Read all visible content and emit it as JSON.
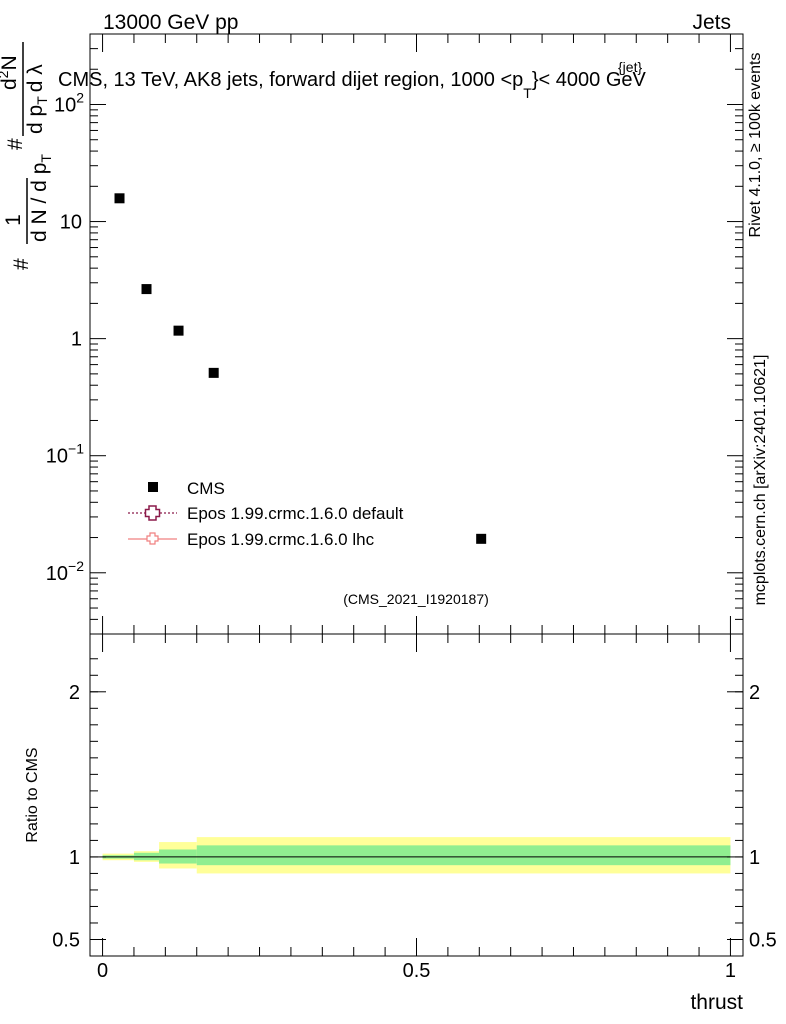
{
  "header": {
    "left": "13000 GeV pp",
    "right": "Jets"
  },
  "side_text": {
    "rivet": "Rivet 4.1.0, ≥ 100k events",
    "mcplots": "mcplots.cern.ch [arXiv:2401.10621]"
  },
  "chart_data": [
    {
      "type": "scatter",
      "title": "CMS, 13 TeV, AK8 jets, forward dijet region, 1000 <p",
      "title_sup": "{jet}",
      "title_sub": "T",
      "title_end": "}< 4000 GeV",
      "ylabel_parts": {
        "prefix": "#",
        "num": "1",
        "den": "d N / d p",
        "den_sub": "T",
        "hash": "#",
        "num2": "d",
        "num2_sup": "2",
        "num2_end": "N",
        "den2": "d p",
        "den2_sub": "T",
        "den2_end": "d λ"
      },
      "yscale": "log",
      "ylim": [
        0.003,
        400
      ],
      "xlim": [
        -0.02,
        1.02
      ],
      "y_ticks": [
        {
          "value": 0.01,
          "base": "10",
          "exp": "−2"
        },
        {
          "value": 0.1,
          "base": "10",
          "exp": "−1"
        },
        {
          "value": 1,
          "base": "1",
          "exp": ""
        },
        {
          "value": 10,
          "base": "10",
          "exp": ""
        },
        {
          "value": 100,
          "base": "10",
          "exp": "2"
        }
      ],
      "series": [
        {
          "name": "CMS",
          "marker": "square",
          "color": "#000000",
          "x": [
            0.027,
            0.07,
            0.121,
            0.177,
            0.603
          ],
          "y": [
            15.8,
            2.65,
            1.17,
            0.51,
            0.0195
          ]
        },
        {
          "name": "Epos 1.99.crmc.1.6.0 default",
          "marker": "open-cross",
          "line": "dotted",
          "color": "#8b1a4a",
          "x": [],
          "y": []
        },
        {
          "name": "Epos 1.99.crmc.1.6.0 lhc",
          "marker": "open-cross",
          "line": "solid",
          "color": "#f08080",
          "x": [],
          "y": []
        }
      ],
      "legend": "lower-left",
      "watermark": "(CMS_2021_I1920187)"
    },
    {
      "type": "area",
      "ylabel": "Ratio to CMS",
      "xlabel": "thrust",
      "ylim": [
        0.4,
        2.35
      ],
      "xlim": [
        -0.02,
        1.02
      ],
      "y_ticks": [
        {
          "value": 0.5,
          "label": "0.5"
        },
        {
          "value": 1,
          "label": "1"
        },
        {
          "value": 2,
          "label": "2"
        }
      ],
      "x_ticks": [
        {
          "value": 0,
          "label": "0"
        },
        {
          "value": 0.5,
          "label": "0.5"
        },
        {
          "value": 1,
          "label": "1"
        }
      ],
      "reference_line": 1,
      "bins": [
        {
          "x0": 0.0,
          "x1": 0.05,
          "inner": [
            0.99,
            1.01
          ],
          "outer": [
            0.98,
            1.02
          ]
        },
        {
          "x0": 0.05,
          "x1": 0.09,
          "inner": [
            0.98,
            1.025
          ],
          "outer": [
            0.97,
            1.035
          ]
        },
        {
          "x0": 0.09,
          "x1": 0.15,
          "inner": [
            0.96,
            1.045
          ],
          "outer": [
            0.93,
            1.09
          ]
        },
        {
          "x0": 0.15,
          "x1": 1.0,
          "inner": [
            0.95,
            1.07
          ],
          "outer": [
            0.9,
            1.12
          ]
        }
      ],
      "band_colors": {
        "inner": "#90ee90",
        "outer": "#ffff99"
      }
    }
  ]
}
